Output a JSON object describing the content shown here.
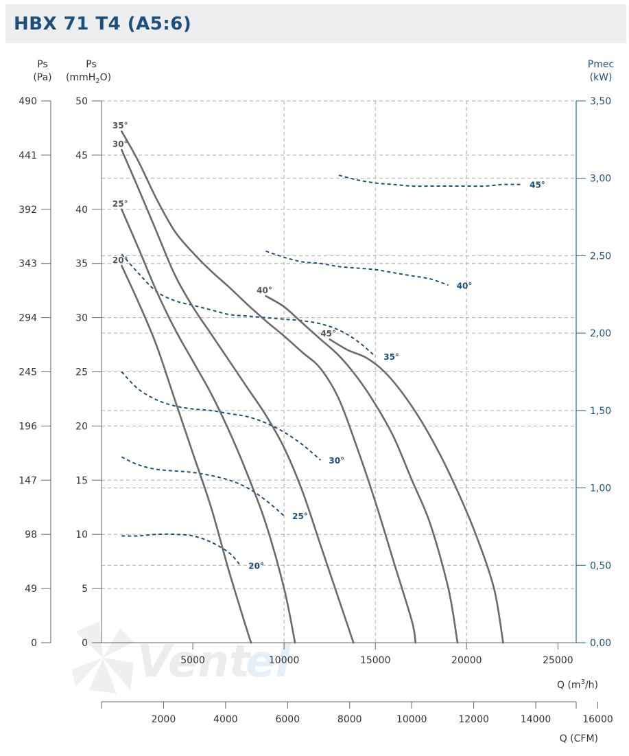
{
  "header": {
    "title": "HBX 71 T4 (A5:6)"
  },
  "axes": {
    "ps_pa": {
      "label_top": "Ps",
      "label_bottom": "(Pa)",
      "ticks": [
        "490",
        "441",
        "392",
        "343",
        "294",
        "245",
        "196",
        "147",
        "98",
        "49",
        "0"
      ]
    },
    "ps_mm": {
      "label_top": "Ps",
      "label_unit": "(mmH",
      "label_sub": "2",
      "label_close": "O)",
      "ticks": [
        "50",
        "45",
        "40",
        "35",
        "30",
        "25",
        "20",
        "15",
        "10",
        "5",
        "0"
      ]
    },
    "pmec": {
      "label_top": "Pmec",
      "label_bottom": "(kW)",
      "ticks": [
        "3,50",
        "3,00",
        "2,50",
        "2,00",
        "1,50",
        "1,00",
        "0,50",
        "0,00"
      ]
    },
    "q_m3h": {
      "label_prefix": "Q (m",
      "label_sup": "3",
      "label_suffix": "/h)",
      "ticks": [
        "5000",
        "10000",
        "15000",
        "20000",
        "25000"
      ]
    },
    "q_cfm": {
      "label": "Q (CFM)",
      "ticks": [
        "2000",
        "4000",
        "6000",
        "8000",
        "10000",
        "12000",
        "14000",
        "16000"
      ]
    }
  },
  "watermark": {
    "text_a": "Vent",
    "text_b": "el"
  },
  "colors": {
    "pressure_curve": "#6a6a6a",
    "power_curve": "#1d4f7c",
    "grid": "#aaaaaa",
    "axis_right": "#1d6a9a",
    "title": "#1d4f7c"
  },
  "chart_data": {
    "type": "line",
    "title": "HBX 71 T4 (A5:6)",
    "xlabel": "Q (m3/h)",
    "x2label": "Q (CFM)",
    "ylabel": "Ps (mmH2O)",
    "y2label": "Ps (Pa)",
    "y3label": "Pmec (kW)",
    "xlim": [
      0,
      26000
    ],
    "ylim": [
      0,
      50
    ],
    "y_power_lim": [
      0,
      3.5
    ],
    "grid": true,
    "pressure_series": [
      {
        "name": "20°",
        "label": "20°",
        "points": [
          [
            1100,
            34.8
          ],
          [
            2000,
            31.5
          ],
          [
            3000,
            27.5
          ],
          [
            4000,
            22.5
          ],
          [
            5000,
            17.5
          ],
          [
            6000,
            12.5
          ],
          [
            7000,
            6.5
          ],
          [
            8000,
            1
          ],
          [
            8200,
            0
          ]
        ]
      },
      {
        "name": "25°",
        "label": "25°",
        "points": [
          [
            1100,
            40
          ],
          [
            2000,
            36.5
          ],
          [
            3000,
            32.5
          ],
          [
            4000,
            29
          ],
          [
            5000,
            26
          ],
          [
            6000,
            23
          ],
          [
            7000,
            19.5
          ],
          [
            8000,
            15.5
          ],
          [
            9000,
            11
          ],
          [
            10000,
            5
          ],
          [
            10600,
            0
          ]
        ]
      },
      {
        "name": "30°",
        "label": "30°",
        "points": [
          [
            1100,
            45.5
          ],
          [
            2000,
            42
          ],
          [
            3000,
            38
          ],
          [
            4000,
            34
          ],
          [
            5000,
            31
          ],
          [
            6000,
            28.5
          ],
          [
            7000,
            26
          ],
          [
            8000,
            23.5
          ],
          [
            9000,
            21
          ],
          [
            10000,
            18
          ],
          [
            11000,
            14
          ],
          [
            12000,
            9
          ],
          [
            13000,
            4
          ],
          [
            13800,
            0
          ]
        ]
      },
      {
        "name": "35°",
        "label": "35°",
        "points": [
          [
            1100,
            47.2
          ],
          [
            2000,
            44.5
          ],
          [
            3000,
            41
          ],
          [
            4000,
            38
          ],
          [
            5000,
            36
          ],
          [
            6000,
            34.3
          ],
          [
            7000,
            32.8
          ],
          [
            8000,
            31.2
          ],
          [
            9000,
            29.7
          ],
          [
            10000,
            28.3
          ],
          [
            11000,
            26.8
          ],
          [
            12000,
            25.3
          ],
          [
            13000,
            22.5
          ],
          [
            14000,
            18
          ],
          [
            15000,
            13
          ],
          [
            16000,
            7.5
          ],
          [
            17000,
            2
          ],
          [
            17200,
            0
          ]
        ]
      },
      {
        "name": "40°",
        "label": "40°",
        "points": [
          [
            9000,
            32
          ],
          [
            10000,
            31
          ],
          [
            11000,
            29.5
          ],
          [
            12000,
            28
          ],
          [
            13000,
            26.5
          ],
          [
            14000,
            24.5
          ],
          [
            15000,
            22
          ],
          [
            16000,
            19
          ],
          [
            17000,
            15
          ],
          [
            18000,
            11
          ],
          [
            19000,
            5
          ],
          [
            19500,
            0
          ]
        ]
      },
      {
        "name": "45°",
        "label": "45°",
        "points": [
          [
            12500,
            28
          ],
          [
            13500,
            27
          ],
          [
            14500,
            26.3
          ],
          [
            15500,
            25
          ],
          [
            16500,
            23
          ],
          [
            17500,
            20.5
          ],
          [
            18500,
            17.5
          ],
          [
            19500,
            14
          ],
          [
            20500,
            10
          ],
          [
            21500,
            5
          ],
          [
            22000,
            0
          ]
        ]
      }
    ],
    "power_series": [
      {
        "name": "20°",
        "label": "20°",
        "points": [
          [
            1100,
            0.69
          ],
          [
            2000,
            0.69
          ],
          [
            3000,
            0.7
          ],
          [
            4000,
            0.7
          ],
          [
            5000,
            0.69
          ],
          [
            6000,
            0.65
          ],
          [
            7000,
            0.58
          ],
          [
            7600,
            0.5
          ]
        ]
      },
      {
        "name": "25°",
        "label": "25°",
        "points": [
          [
            1100,
            1.2
          ],
          [
            2000,
            1.15
          ],
          [
            3000,
            1.12
          ],
          [
            4000,
            1.11
          ],
          [
            5000,
            1.1
          ],
          [
            6000,
            1.08
          ],
          [
            7000,
            1.05
          ],
          [
            8000,
            1.0
          ],
          [
            9000,
            0.92
          ],
          [
            10000,
            0.82
          ]
        ]
      },
      {
        "name": "30°",
        "label": "30°",
        "points": [
          [
            1100,
            1.75
          ],
          [
            2000,
            1.64
          ],
          [
            3000,
            1.57
          ],
          [
            4000,
            1.53
          ],
          [
            5000,
            1.51
          ],
          [
            6000,
            1.5
          ],
          [
            7000,
            1.48
          ],
          [
            8000,
            1.46
          ],
          [
            9000,
            1.42
          ],
          [
            10000,
            1.36
          ],
          [
            11000,
            1.28
          ],
          [
            12000,
            1.18
          ]
        ]
      },
      {
        "name": "35°",
        "label": "35°",
        "points": [
          [
            1100,
            2.51
          ],
          [
            2000,
            2.39
          ],
          [
            3000,
            2.27
          ],
          [
            4000,
            2.21
          ],
          [
            5000,
            2.18
          ],
          [
            6000,
            2.15
          ],
          [
            7000,
            2.12
          ],
          [
            8000,
            2.11
          ],
          [
            9000,
            2.1
          ],
          [
            10000,
            2.09
          ],
          [
            11000,
            2.08
          ],
          [
            12000,
            2.06
          ],
          [
            13000,
            2.02
          ],
          [
            14000,
            1.95
          ],
          [
            15000,
            1.85
          ]
        ]
      },
      {
        "name": "40°",
        "label": "40°",
        "points": [
          [
            9000,
            2.53
          ],
          [
            10000,
            2.49
          ],
          [
            11000,
            2.46
          ],
          [
            12000,
            2.45
          ],
          [
            13000,
            2.43
          ],
          [
            14000,
            2.42
          ],
          [
            15000,
            2.41
          ],
          [
            16000,
            2.39
          ],
          [
            17000,
            2.37
          ],
          [
            18000,
            2.35
          ],
          [
            19000,
            2.31
          ]
        ]
      },
      {
        "name": "45°",
        "label": "45°",
        "points": [
          [
            13000,
            3.02
          ],
          [
            14000,
            2.99
          ],
          [
            15000,
            2.97
          ],
          [
            16000,
            2.96
          ],
          [
            17000,
            2.95
          ],
          [
            18000,
            2.95
          ],
          [
            19000,
            2.95
          ],
          [
            20000,
            2.95
          ],
          [
            21000,
            2.95
          ],
          [
            22000,
            2.96
          ],
          [
            23000,
            2.96
          ]
        ]
      }
    ]
  }
}
